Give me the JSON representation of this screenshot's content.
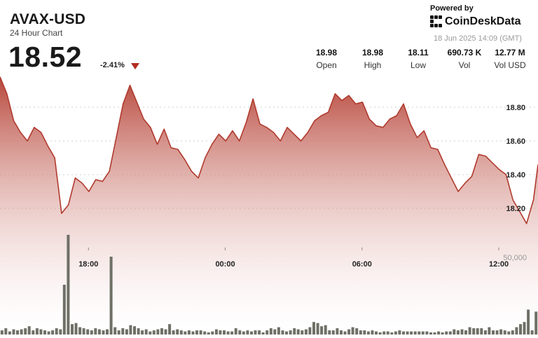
{
  "header": {
    "pair": "AVAX-USD",
    "subtitle": "24 Hour Chart",
    "price": "18.52",
    "change": "-2.41%",
    "change_direction_icon": "down-triangle-icon",
    "powered_by": "Powered by",
    "brand": "CoinDeskData",
    "brand_icon": "coindesk-logo-icon",
    "timestamp": "18 Jun 2025 14:09 (GMT)"
  },
  "stats": [
    {
      "value": "18.98",
      "label": "Open"
    },
    {
      "value": "18.98",
      "label": "High"
    },
    {
      "value": "18.11",
      "label": "Low"
    },
    {
      "value": "690.73 K",
      "label": "Vol"
    },
    {
      "value": "12.77 M",
      "label": "Vol USD"
    }
  ],
  "colors": {
    "line": "#b03a2e",
    "fill_top": "#b8473b",
    "fill_bottom": "#ffffff",
    "volume": "#6e7066",
    "arrow": "#b22a1f"
  },
  "chart_data": [
    {
      "type": "area",
      "x_ticks": [
        "18:00",
        "00:00",
        "06:00",
        "12:00"
      ],
      "y_ticks": [
        "18.80",
        "18.60",
        "18.40",
        "18.20"
      ],
      "grid": true,
      "ylim": [
        17.98,
        19.02
      ],
      "x": [
        0.0,
        0.3,
        0.6,
        0.9,
        1.2,
        1.5,
        1.8,
        2.1,
        2.4,
        2.7,
        3.0,
        3.3,
        3.6,
        3.9,
        4.2,
        4.5,
        4.8,
        5.1,
        5.4,
        5.7,
        6.0,
        6.3,
        6.6,
        6.9,
        7.2,
        7.5,
        7.8,
        8.1,
        8.4,
        8.7,
        9.0,
        9.3,
        9.6,
        9.9,
        10.2,
        10.5,
        10.8,
        11.1,
        11.4,
        11.7,
        12.0,
        12.3,
        12.6,
        12.9,
        13.2,
        13.5,
        13.8,
        14.1,
        14.4,
        14.7,
        15.0,
        15.3,
        15.6,
        15.9,
        16.2,
        16.5,
        16.8,
        17.1,
        17.4,
        17.7,
        18.0,
        18.3,
        18.6,
        18.9,
        19.2,
        19.5,
        19.8,
        20.1,
        20.4,
        20.7,
        21.0,
        21.3,
        21.6,
        21.9,
        22.2,
        22.5,
        22.8,
        23.1,
        23.4,
        23.6
      ],
      "y": [
        18.98,
        18.88,
        18.72,
        18.65,
        18.6,
        18.68,
        18.65,
        18.57,
        18.5,
        18.17,
        18.22,
        18.38,
        18.35,
        18.3,
        18.37,
        18.36,
        18.42,
        18.62,
        18.82,
        18.93,
        18.83,
        18.73,
        18.68,
        18.58,
        18.67,
        18.56,
        18.55,
        18.49,
        18.42,
        18.38,
        18.5,
        18.58,
        18.64,
        18.6,
        18.66,
        18.6,
        18.71,
        18.85,
        18.7,
        18.68,
        18.65,
        18.6,
        18.68,
        18.64,
        18.6,
        18.65,
        18.72,
        18.75,
        18.77,
        18.88,
        18.84,
        18.87,
        18.82,
        18.83,
        18.73,
        18.69,
        18.68,
        18.73,
        18.75,
        18.82,
        18.7,
        18.62,
        18.66,
        18.56,
        18.55,
        18.46,
        18.38,
        18.3,
        18.35,
        18.39,
        18.52,
        18.51,
        18.47,
        18.43,
        18.4,
        18.25,
        18.18,
        18.11,
        18.25,
        18.46
      ]
    },
    {
      "type": "bar",
      "series": [
        {
          "name": "Vol",
          "values": [
            4,
            6,
            3,
            5,
            4,
            5,
            6,
            8,
            4,
            6,
            5,
            4,
            3,
            4,
            6,
            5,
            48,
            96,
            10,
            11,
            7,
            6,
            5,
            4,
            6,
            5,
            4,
            5,
            75,
            7,
            4,
            6,
            5,
            9,
            8,
            6,
            4,
            5,
            3,
            4,
            5,
            6,
            5,
            10,
            4,
            5,
            4,
            3,
            4,
            3,
            4,
            4,
            3,
            2,
            3,
            5,
            4,
            4,
            3,
            3,
            6,
            4,
            3,
            4,
            3,
            4,
            4,
            2,
            4,
            6,
            5,
            7,
            4,
            3,
            4,
            6,
            5,
            4,
            5,
            7,
            12,
            11,
            8,
            9,
            4,
            4,
            6,
            4,
            3,
            5,
            7,
            6,
            4,
            4,
            3,
            4,
            3,
            2,
            3,
            3,
            2,
            3,
            4,
            3,
            3,
            3,
            3,
            3,
            3,
            3,
            2,
            2,
            3,
            2,
            3,
            3,
            5,
            4,
            5,
            4,
            7,
            6,
            6,
            6,
            4,
            7,
            4,
            4,
            5,
            4,
            3,
            4,
            7,
            10,
            12,
            24,
            4,
            22
          ]
        }
      ],
      "y_ticks": [
        "50,000"
      ],
      "ylim": [
        0,
        100
      ]
    }
  ]
}
